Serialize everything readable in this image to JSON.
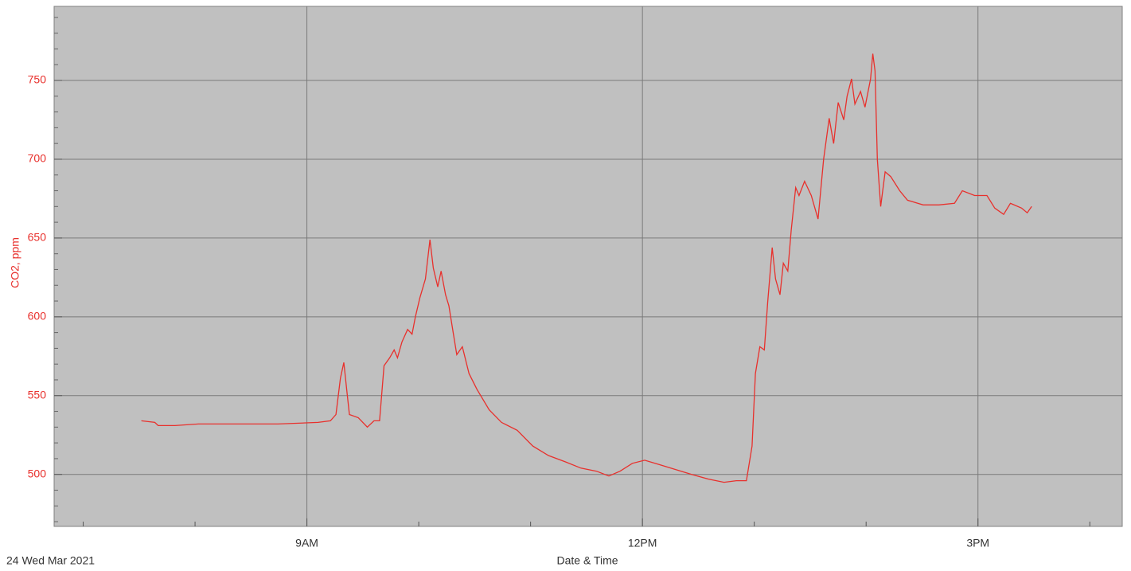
{
  "chart_data": {
    "type": "line",
    "x_label": "Date & Time",
    "y_label": "CO2, ppm",
    "date_label": "24 Wed Mar 2021",
    "xlim": [
      6.74,
      16.29
    ],
    "xticks": [
      {
        "value": 9,
        "label": "9AM"
      },
      {
        "value": 12,
        "label": "12PM"
      },
      {
        "value": 15,
        "label": "3PM"
      }
    ],
    "minor_xticks": [
      7,
      8,
      10,
      11,
      13,
      14,
      16
    ],
    "ylim": [
      467,
      797
    ],
    "yticks": [
      500,
      550,
      600,
      650,
      700,
      750
    ],
    "minor_yticks": [
      470,
      480,
      490,
      510,
      520,
      530,
      540,
      560,
      570,
      580,
      590,
      610,
      620,
      630,
      640,
      660,
      670,
      680,
      690,
      710,
      720,
      730,
      740,
      760,
      770,
      780,
      790
    ],
    "grid": true,
    "series": [
      {
        "name": "CO2, ppm",
        "color": "#e8302c",
        "x": [
          7.52,
          7.64,
          7.67,
          7.82,
          8.03,
          8.39,
          8.74,
          9.1,
          9.21,
          9.26,
          9.3,
          9.33,
          9.36,
          9.38,
          9.46,
          9.54,
          9.6,
          9.65,
          9.69,
          9.74,
          9.78,
          9.81,
          9.85,
          9.9,
          9.94,
          9.97,
          10.01,
          10.06,
          10.1,
          10.13,
          10.17,
          10.2,
          10.24,
          10.27,
          10.31,
          10.34,
          10.39,
          10.45,
          10.52,
          10.63,
          10.74,
          10.88,
          11.02,
          11.16,
          11.31,
          11.45,
          11.59,
          11.7,
          11.8,
          11.91,
          12.02,
          12.16,
          12.3,
          12.44,
          12.59,
          12.73,
          12.84,
          12.93,
          12.98,
          13.01,
          13.05,
          13.09,
          13.12,
          13.16,
          13.19,
          13.23,
          13.26,
          13.3,
          13.33,
          13.37,
          13.4,
          13.45,
          13.51,
          13.57,
          13.62,
          13.67,
          13.71,
          13.75,
          13.8,
          13.83,
          13.87,
          13.9,
          13.95,
          13.99,
          14.04,
          14.06,
          14.08,
          14.1,
          14.13,
          14.17,
          14.22,
          14.3,
          14.37,
          14.51,
          14.65,
          14.79,
          14.86,
          14.97,
          15.08,
          15.15,
          15.23,
          15.29,
          15.39,
          15.44,
          15.48
        ],
        "values": [
          534,
          533,
          531,
          531,
          532,
          532,
          532,
          533,
          534,
          538,
          561,
          571,
          551,
          538,
          536,
          530,
          534,
          534,
          569,
          574,
          579,
          574,
          584,
          592,
          589,
          600,
          612,
          624,
          649,
          631,
          619,
          629,
          614,
          607,
          589,
          576,
          581,
          564,
          554,
          541,
          533,
          528,
          518,
          512,
          508,
          504,
          502,
          499,
          502,
          507,
          509,
          506,
          503,
          500,
          497,
          495,
          496,
          496,
          518,
          564,
          581,
          579,
          609,
          644,
          624,
          614,
          634,
          629,
          655,
          682,
          677,
          686,
          677,
          662,
          700,
          726,
          710,
          736,
          725,
          740,
          751,
          735,
          743,
          733,
          751,
          767,
          756,
          700,
          670,
          692,
          689,
          680,
          674,
          671,
          671,
          672,
          680,
          677,
          677,
          669,
          665,
          672,
          669,
          666,
          670
        ]
      }
    ]
  }
}
